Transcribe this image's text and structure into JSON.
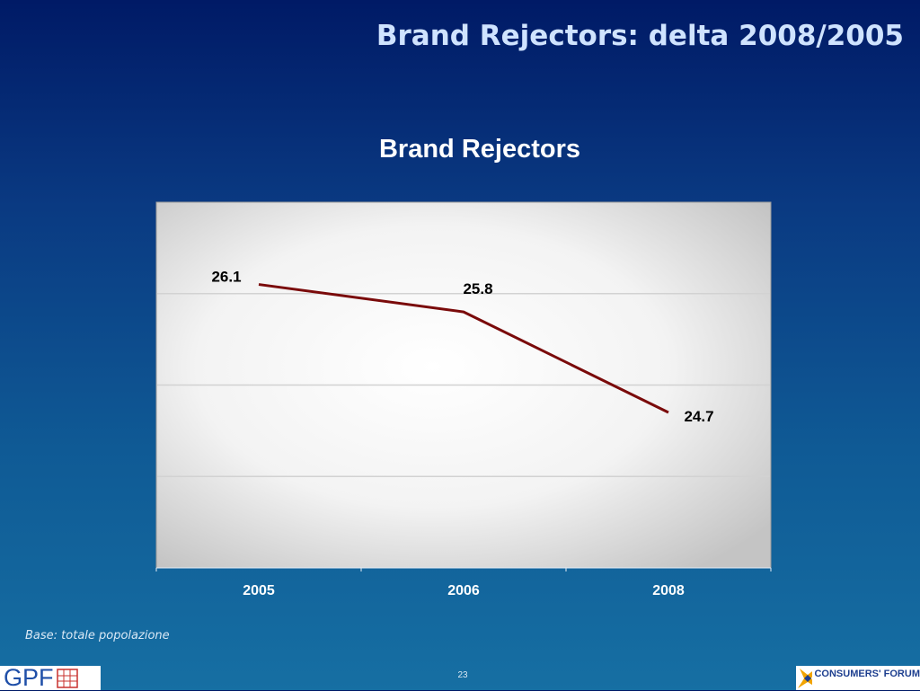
{
  "slide": {
    "title": "Brand Rejectors: delta 2008/2005",
    "base_note": "Base: totale popolazione",
    "page_number": "23"
  },
  "logos": {
    "left": "GPF",
    "right": "CONSUMERS' FORUM"
  },
  "colors": {
    "line": "#7a0a0a",
    "title": "#cfe3ff",
    "gpf_blue": "#1f4fa8",
    "cf_blue": "#1e3f8f",
    "cf_orange": "#f2a400"
  },
  "chart_data": {
    "type": "line",
    "title": "Brand Rejectors",
    "categories": [
      "2005",
      "2006",
      "2008"
    ],
    "values": [
      26.1,
      25.8,
      24.7
    ],
    "data_labels": [
      "26.1",
      "25.8",
      "24.7"
    ],
    "xlabel": "",
    "ylabel": "",
    "ylim": [
      23,
      27
    ],
    "grid": true,
    "legend": "none"
  }
}
